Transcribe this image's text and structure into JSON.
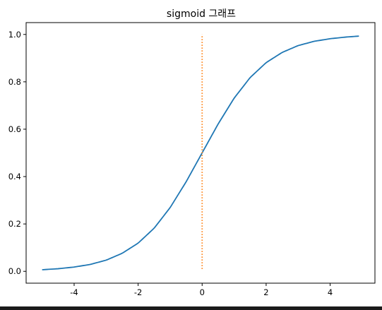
{
  "chart_data": {
    "type": "line",
    "title": "sigmoid 그래프",
    "xlabel": "",
    "ylabel": "",
    "xlim": [
      -5.5,
      5.4
    ],
    "ylim": [
      -0.05,
      1.05
    ],
    "xticks": [
      -4,
      -2,
      0,
      2,
      4
    ],
    "xtick_labels": [
      "-4",
      "-2",
      "0",
      "2",
      "4"
    ],
    "yticks": [
      0.0,
      0.2,
      0.4,
      0.6,
      0.8,
      1.0
    ],
    "ytick_labels": [
      "0.0",
      "0.2",
      "0.4",
      "0.6",
      "0.8",
      "1.0"
    ],
    "grid": false,
    "series": [
      {
        "style": "solid",
        "color": "#1f77b4",
        "x": [
          -5.0,
          -4.5,
          -4.0,
          -3.5,
          -3.0,
          -2.5,
          -2.0,
          -1.5,
          -1.0,
          -0.5,
          0.0,
          0.5,
          1.0,
          1.5,
          2.0,
          2.5,
          3.0,
          3.5,
          4.0,
          4.5,
          4.9
        ],
        "y": [
          0.0067,
          0.011,
          0.018,
          0.029,
          0.047,
          0.076,
          0.119,
          0.182,
          0.269,
          0.378,
          0.5,
          0.622,
          0.731,
          0.818,
          0.881,
          0.924,
          0.953,
          0.971,
          0.982,
          0.989,
          0.993
        ]
      },
      {
        "style": "dotted",
        "color": "#ff7f0e",
        "x": [
          0.0,
          0.0
        ],
        "y": [
          0.01,
          1.0
        ]
      }
    ]
  }
}
